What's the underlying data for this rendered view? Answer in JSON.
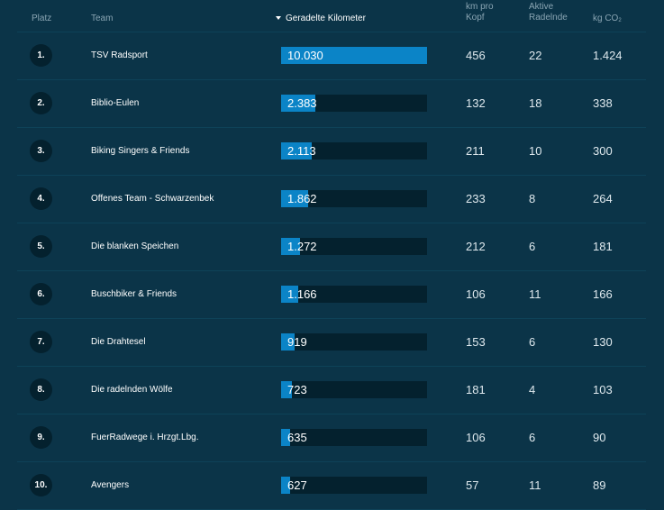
{
  "header": {
    "platz": "Platz",
    "team": "Team",
    "km": "Geradelte Kilometer",
    "kopf_line1": "km pro",
    "kopf_line2": "Kopf",
    "aktive_line1": "Aktive",
    "aktive_line2": "Radelnde",
    "co2": "kg CO",
    "co2_sub": "2"
  },
  "colors": {
    "background": "#0b3448",
    "bar_fill": "#0b84c7",
    "bar_track": "#04212e"
  },
  "rows": [
    {
      "rank": "1.",
      "team": "TSV Radsport",
      "km": "10.030",
      "km_value": 10030,
      "kopf": "456",
      "aktive": "22",
      "co2": "1.424"
    },
    {
      "rank": "2.",
      "team": "Biblio-Eulen",
      "km": "2.383",
      "km_value": 2383,
      "kopf": "132",
      "aktive": "18",
      "co2": "338"
    },
    {
      "rank": "3.",
      "team": "Biking Singers & Friends",
      "km": "2.113",
      "km_value": 2113,
      "kopf": "211",
      "aktive": "10",
      "co2": "300"
    },
    {
      "rank": "4.",
      "team": "Offenes Team - Schwarzenbek",
      "km": "1.862",
      "km_value": 1862,
      "kopf": "233",
      "aktive": "8",
      "co2": "264"
    },
    {
      "rank": "5.",
      "team": "Die blanken Speichen",
      "km": "1.272",
      "km_value": 1272,
      "kopf": "212",
      "aktive": "6",
      "co2": "181"
    },
    {
      "rank": "6.",
      "team": "Buschbiker & Friends",
      "km": "1.166",
      "km_value": 1166,
      "kopf": "106",
      "aktive": "11",
      "co2": "166"
    },
    {
      "rank": "7.",
      "team": "Die Drahtesel",
      "km": "919",
      "km_value": 919,
      "kopf": "153",
      "aktive": "6",
      "co2": "130"
    },
    {
      "rank": "8.",
      "team": "Die radelnden Wölfe",
      "km": "723",
      "km_value": 723,
      "kopf": "181",
      "aktive": "4",
      "co2": "103"
    },
    {
      "rank": "9.",
      "team": "FuerRadwege i. Hrzgt.Lbg.",
      "km": "635",
      "km_value": 635,
      "kopf": "106",
      "aktive": "6",
      "co2": "90"
    },
    {
      "rank": "10.",
      "team": "Avengers",
      "km": "627",
      "km_value": 627,
      "kopf": "57",
      "aktive": "11",
      "co2": "89"
    }
  ]
}
